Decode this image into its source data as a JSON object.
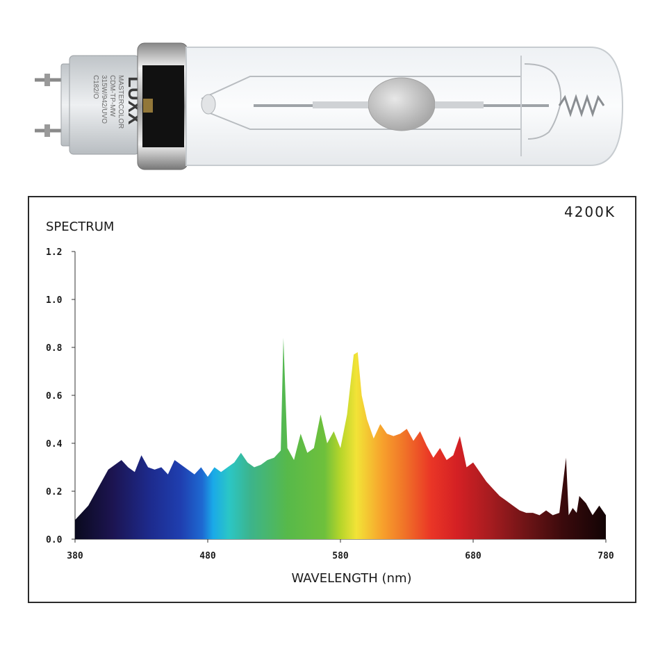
{
  "lamp": {
    "brand_logo": "LUXX",
    "base_labels": [
      "MASTERCOLOR",
      "CDM-TP-MW",
      "315W/942/UVO",
      "C182/O"
    ]
  },
  "chart_data": {
    "type": "area",
    "badge": "4200K",
    "ylabel": "SPECTRUM",
    "xlabel": "WAVELENGTH (nm)",
    "xlim": [
      380,
      780
    ],
    "ylim": [
      0,
      1.2
    ],
    "xticks": [
      "380",
      "480",
      "580",
      "680",
      "780"
    ],
    "yticks": [
      "0.0",
      "0.2",
      "0.4",
      "0.6",
      "0.8",
      "1.0",
      "1.2"
    ],
    "x": [
      380,
      385,
      390,
      395,
      400,
      405,
      410,
      415,
      420,
      425,
      430,
      435,
      440,
      445,
      450,
      455,
      460,
      465,
      470,
      475,
      480,
      485,
      490,
      495,
      500,
      505,
      510,
      515,
      520,
      525,
      530,
      535,
      537,
      540,
      545,
      550,
      555,
      560,
      565,
      570,
      575,
      580,
      585,
      590,
      593,
      596,
      600,
      605,
      610,
      615,
      620,
      625,
      630,
      635,
      640,
      645,
      650,
      655,
      660,
      665,
      670,
      675,
      680,
      685,
      690,
      695,
      700,
      705,
      710,
      715,
      720,
      725,
      730,
      735,
      740,
      745,
      750,
      752,
      755,
      758,
      760,
      765,
      770,
      775,
      780
    ],
    "values": [
      0.08,
      0.11,
      0.14,
      0.19,
      0.24,
      0.29,
      0.31,
      0.33,
      0.3,
      0.28,
      0.35,
      0.3,
      0.29,
      0.3,
      0.27,
      0.33,
      0.31,
      0.29,
      0.27,
      0.3,
      0.26,
      0.3,
      0.28,
      0.3,
      0.32,
      0.36,
      0.32,
      0.3,
      0.31,
      0.33,
      0.34,
      0.37,
      0.84,
      0.38,
      0.33,
      0.44,
      0.36,
      0.38,
      0.52,
      0.4,
      0.45,
      0.38,
      0.52,
      0.77,
      0.78,
      0.6,
      0.5,
      0.42,
      0.48,
      0.44,
      0.43,
      0.44,
      0.46,
      0.41,
      0.45,
      0.39,
      0.34,
      0.38,
      0.33,
      0.35,
      0.43,
      0.3,
      0.32,
      0.28,
      0.24,
      0.21,
      0.18,
      0.16,
      0.14,
      0.12,
      0.11,
      0.11,
      0.1,
      0.12,
      0.1,
      0.11,
      0.34,
      0.1,
      0.13,
      0.11,
      0.18,
      0.15,
      0.1,
      0.14,
      0.1
    ]
  }
}
